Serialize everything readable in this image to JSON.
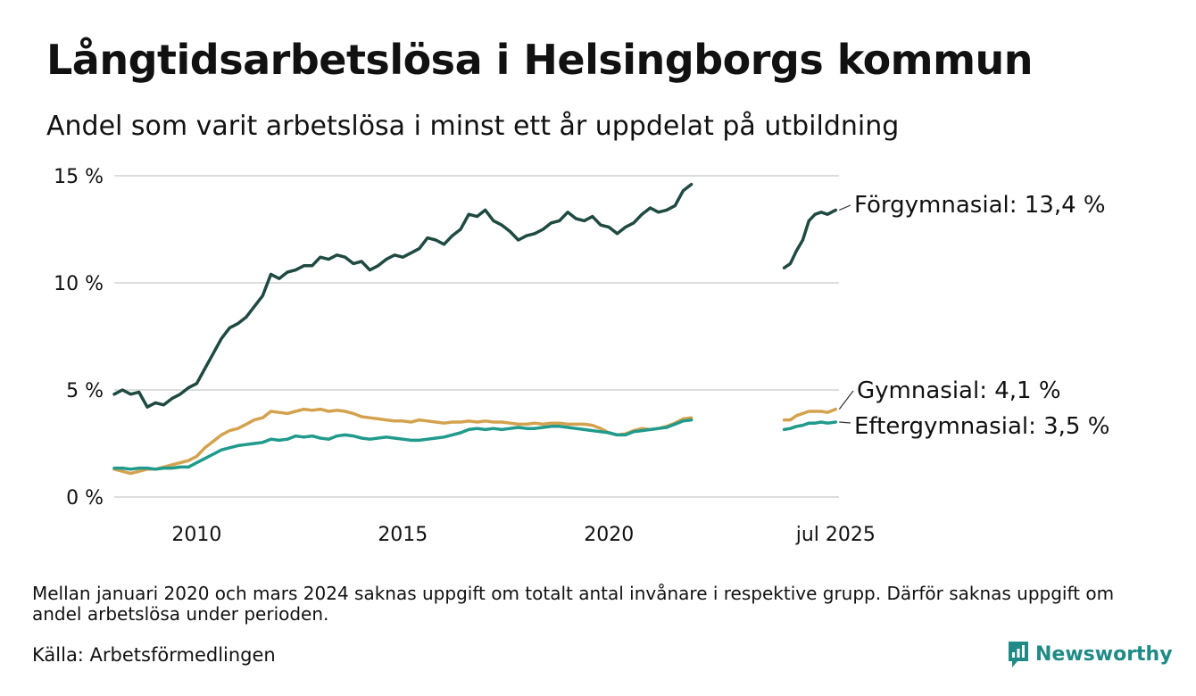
{
  "header": {
    "title": "Långtidsarbetslösa i Helsingborgs kommun",
    "subtitle": "Andel som varit arbetslösa i minst ett år uppdelat på utbildning"
  },
  "footer": {
    "note": "Mellan januari 2020 och mars 2024 saknas uppgift om totalt antal invånare i respektive grupp. Därför saknas uppgift om andel arbetslösa under perioden.",
    "source": "Källa: Arbetsförmedlingen",
    "logo_text": "Newsworthy"
  },
  "colors": {
    "forgymnasial": "#1f4a42",
    "gymnasial": "#d4a24e",
    "eftergymnasial": "#1f9a8c",
    "grid": "#dddddd",
    "brand": "#1f8a86"
  },
  "chart_data": {
    "type": "line",
    "title": "Långtidsarbetslösa i Helsingborgs kommun",
    "subtitle": "Andel som varit arbetslösa i minst ett år uppdelat på utbildning",
    "ylim": [
      0,
      15
    ],
    "yticks": [
      0,
      5,
      10,
      15
    ],
    "ytick_labels": [
      "0 %",
      "5 %",
      "10 %",
      "15 %"
    ],
    "xlim": [
      2008.0,
      2025.58
    ],
    "xticks": [
      2010,
      2015,
      2020,
      2025.5
    ],
    "xtick_labels": [
      "2010",
      "2015",
      "2020",
      "jul 2025"
    ],
    "grid": "horizontal",
    "series": [
      {
        "name": "Förgymnasial",
        "end_label": "Förgymnasial: 13,4 %",
        "color": "#1f4a42",
        "segments": [
          [
            [
              2008.0,
              4.8
            ],
            [
              2008.2,
              5.0
            ],
            [
              2008.4,
              4.8
            ],
            [
              2008.6,
              4.9
            ],
            [
              2008.8,
              4.2
            ],
            [
              2009.0,
              4.4
            ],
            [
              2009.2,
              4.3
            ],
            [
              2009.4,
              4.6
            ],
            [
              2009.6,
              4.8
            ],
            [
              2009.8,
              5.1
            ],
            [
              2010.0,
              5.3
            ],
            [
              2010.2,
              6.0
            ],
            [
              2010.4,
              6.7
            ],
            [
              2010.6,
              7.4
            ],
            [
              2010.8,
              7.9
            ],
            [
              2011.0,
              8.1
            ],
            [
              2011.2,
              8.4
            ],
            [
              2011.4,
              8.9
            ],
            [
              2011.6,
              9.4
            ],
            [
              2011.8,
              10.4
            ],
            [
              2012.0,
              10.2
            ],
            [
              2012.2,
              10.5
            ],
            [
              2012.4,
              10.6
            ],
            [
              2012.6,
              10.8
            ],
            [
              2012.8,
              10.8
            ],
            [
              2013.0,
              11.2
            ],
            [
              2013.2,
              11.1
            ],
            [
              2013.4,
              11.3
            ],
            [
              2013.6,
              11.2
            ],
            [
              2013.8,
              10.9
            ],
            [
              2014.0,
              11.0
            ],
            [
              2014.2,
              10.6
            ],
            [
              2014.4,
              10.8
            ],
            [
              2014.6,
              11.1
            ],
            [
              2014.8,
              11.3
            ],
            [
              2015.0,
              11.2
            ],
            [
              2015.2,
              11.4
            ],
            [
              2015.4,
              11.6
            ],
            [
              2015.6,
              12.1
            ],
            [
              2015.8,
              12.0
            ],
            [
              2016.0,
              11.8
            ],
            [
              2016.2,
              12.2
            ],
            [
              2016.4,
              12.5
            ],
            [
              2016.6,
              13.2
            ],
            [
              2016.8,
              13.1
            ],
            [
              2017.0,
              13.4
            ],
            [
              2017.2,
              12.9
            ],
            [
              2017.4,
              12.7
            ],
            [
              2017.6,
              12.4
            ],
            [
              2017.8,
              12.0
            ],
            [
              2018.0,
              12.2
            ],
            [
              2018.2,
              12.3
            ],
            [
              2018.4,
              12.5
            ],
            [
              2018.6,
              12.8
            ],
            [
              2018.8,
              12.9
            ],
            [
              2019.0,
              13.3
            ],
            [
              2019.2,
              13.0
            ],
            [
              2019.4,
              12.9
            ],
            [
              2019.6,
              13.1
            ],
            [
              2019.8,
              12.7
            ],
            [
              2020.0,
              12.6
            ],
            [
              2020.2,
              12.3
            ],
            [
              2020.4,
              12.6
            ],
            [
              2020.6,
              12.8
            ],
            [
              2020.8,
              13.2
            ],
            [
              2021.0,
              13.5
            ],
            [
              2021.2,
              13.3
            ],
            [
              2021.4,
              13.4
            ],
            [
              2021.6,
              13.6
            ],
            [
              2021.8,
              14.3
            ],
            [
              2022.0,
              14.6
            ]
          ],
          [
            [
              2024.25,
              10.7
            ],
            [
              2024.4,
              10.9
            ],
            [
              2024.55,
              11.5
            ],
            [
              2024.7,
              12.0
            ],
            [
              2024.85,
              12.9
            ],
            [
              2025.0,
              13.2
            ],
            [
              2025.15,
              13.3
            ],
            [
              2025.3,
              13.2
            ],
            [
              2025.5,
              13.4
            ]
          ]
        ]
      },
      {
        "name": "Gymnasial",
        "end_label": "Gymnasial:  4,1 %",
        "color": "#d4a24e",
        "segments": [
          [
            [
              2008.0,
              1.3
            ],
            [
              2008.2,
              1.2
            ],
            [
              2008.4,
              1.1
            ],
            [
              2008.6,
              1.2
            ],
            [
              2008.8,
              1.3
            ],
            [
              2009.0,
              1.3
            ],
            [
              2009.2,
              1.4
            ],
            [
              2009.4,
              1.5
            ],
            [
              2009.6,
              1.6
            ],
            [
              2009.8,
              1.7
            ],
            [
              2010.0,
              1.9
            ],
            [
              2010.2,
              2.3
            ],
            [
              2010.4,
              2.6
            ],
            [
              2010.6,
              2.9
            ],
            [
              2010.8,
              3.1
            ],
            [
              2011.0,
              3.2
            ],
            [
              2011.2,
              3.4
            ],
            [
              2011.4,
              3.6
            ],
            [
              2011.6,
              3.7
            ],
            [
              2011.8,
              4.0
            ],
            [
              2012.0,
              3.95
            ],
            [
              2012.2,
              3.9
            ],
            [
              2012.4,
              4.0
            ],
            [
              2012.6,
              4.1
            ],
            [
              2012.8,
              4.05
            ],
            [
              2013.0,
              4.1
            ],
            [
              2013.2,
              4.0
            ],
            [
              2013.4,
              4.05
            ],
            [
              2013.6,
              4.0
            ],
            [
              2013.8,
              3.9
            ],
            [
              2014.0,
              3.75
            ],
            [
              2014.2,
              3.7
            ],
            [
              2014.4,
              3.65
            ],
            [
              2014.6,
              3.6
            ],
            [
              2014.8,
              3.55
            ],
            [
              2015.0,
              3.55
            ],
            [
              2015.2,
              3.5
            ],
            [
              2015.4,
              3.6
            ],
            [
              2015.6,
              3.55
            ],
            [
              2015.8,
              3.5
            ],
            [
              2016.0,
              3.45
            ],
            [
              2016.2,
              3.5
            ],
            [
              2016.4,
              3.5
            ],
            [
              2016.6,
              3.55
            ],
            [
              2016.8,
              3.5
            ],
            [
              2017.0,
              3.55
            ],
            [
              2017.2,
              3.5
            ],
            [
              2017.4,
              3.5
            ],
            [
              2017.6,
              3.45
            ],
            [
              2017.8,
              3.4
            ],
            [
              2018.0,
              3.4
            ],
            [
              2018.2,
              3.45
            ],
            [
              2018.4,
              3.4
            ],
            [
              2018.6,
              3.45
            ],
            [
              2018.8,
              3.45
            ],
            [
              2019.0,
              3.4
            ],
            [
              2019.2,
              3.4
            ],
            [
              2019.4,
              3.4
            ],
            [
              2019.6,
              3.35
            ],
            [
              2019.8,
              3.2
            ],
            [
              2020.0,
              3.0
            ],
            [
              2020.2,
              2.9
            ],
            [
              2020.4,
              2.95
            ],
            [
              2020.6,
              3.1
            ],
            [
              2020.8,
              3.2
            ],
            [
              2021.0,
              3.15
            ],
            [
              2021.2,
              3.2
            ],
            [
              2021.4,
              3.3
            ],
            [
              2021.6,
              3.45
            ],
            [
              2021.8,
              3.65
            ],
            [
              2022.0,
              3.7
            ]
          ],
          [
            [
              2024.25,
              3.6
            ],
            [
              2024.4,
              3.6
            ],
            [
              2024.55,
              3.8
            ],
            [
              2024.7,
              3.9
            ],
            [
              2024.85,
              4.0
            ],
            [
              2025.0,
              4.0
            ],
            [
              2025.15,
              4.0
            ],
            [
              2025.3,
              3.95
            ],
            [
              2025.5,
              4.1
            ]
          ]
        ]
      },
      {
        "name": "Eftergymnasial",
        "end_label": "Eftergymnasial:  3,5 %",
        "color": "#1f9a8c",
        "segments": [
          [
            [
              2008.0,
              1.35
            ],
            [
              2008.2,
              1.35
            ],
            [
              2008.4,
              1.3
            ],
            [
              2008.6,
              1.35
            ],
            [
              2008.8,
              1.35
            ],
            [
              2009.0,
              1.3
            ],
            [
              2009.2,
              1.35
            ],
            [
              2009.4,
              1.35
            ],
            [
              2009.6,
              1.4
            ],
            [
              2009.8,
              1.4
            ],
            [
              2010.0,
              1.6
            ],
            [
              2010.2,
              1.8
            ],
            [
              2010.4,
              2.0
            ],
            [
              2010.6,
              2.2
            ],
            [
              2010.8,
              2.3
            ],
            [
              2011.0,
              2.4
            ],
            [
              2011.2,
              2.45
            ],
            [
              2011.4,
              2.5
            ],
            [
              2011.6,
              2.55
            ],
            [
              2011.8,
              2.7
            ],
            [
              2012.0,
              2.65
            ],
            [
              2012.2,
              2.7
            ],
            [
              2012.4,
              2.85
            ],
            [
              2012.6,
              2.8
            ],
            [
              2012.8,
              2.85
            ],
            [
              2013.0,
              2.75
            ],
            [
              2013.2,
              2.7
            ],
            [
              2013.4,
              2.85
            ],
            [
              2013.6,
              2.9
            ],
            [
              2013.8,
              2.85
            ],
            [
              2014.0,
              2.75
            ],
            [
              2014.2,
              2.7
            ],
            [
              2014.4,
              2.75
            ],
            [
              2014.6,
              2.8
            ],
            [
              2014.8,
              2.75
            ],
            [
              2015.0,
              2.7
            ],
            [
              2015.2,
              2.65
            ],
            [
              2015.4,
              2.65
            ],
            [
              2015.6,
              2.7
            ],
            [
              2015.8,
              2.75
            ],
            [
              2016.0,
              2.8
            ],
            [
              2016.2,
              2.9
            ],
            [
              2016.4,
              3.0
            ],
            [
              2016.6,
              3.15
            ],
            [
              2016.8,
              3.2
            ],
            [
              2017.0,
              3.15
            ],
            [
              2017.2,
              3.2
            ],
            [
              2017.4,
              3.15
            ],
            [
              2017.6,
              3.2
            ],
            [
              2017.8,
              3.25
            ],
            [
              2018.0,
              3.2
            ],
            [
              2018.2,
              3.2
            ],
            [
              2018.4,
              3.25
            ],
            [
              2018.6,
              3.3
            ],
            [
              2018.8,
              3.3
            ],
            [
              2019.0,
              3.25
            ],
            [
              2019.2,
              3.2
            ],
            [
              2019.4,
              3.15
            ],
            [
              2019.6,
              3.1
            ],
            [
              2019.8,
              3.05
            ],
            [
              2020.0,
              3.0
            ],
            [
              2020.2,
              2.9
            ],
            [
              2020.4,
              2.9
            ],
            [
              2020.6,
              3.05
            ],
            [
              2020.8,
              3.1
            ],
            [
              2021.0,
              3.15
            ],
            [
              2021.2,
              3.2
            ],
            [
              2021.4,
              3.25
            ],
            [
              2021.6,
              3.4
            ],
            [
              2021.8,
              3.55
            ],
            [
              2022.0,
              3.6
            ]
          ],
          [
            [
              2024.25,
              3.15
            ],
            [
              2024.4,
              3.2
            ],
            [
              2024.55,
              3.3
            ],
            [
              2024.7,
              3.35
            ],
            [
              2024.85,
              3.45
            ],
            [
              2025.0,
              3.45
            ],
            [
              2025.15,
              3.5
            ],
            [
              2025.3,
              3.45
            ],
            [
              2025.5,
              3.5
            ]
          ]
        ]
      }
    ]
  }
}
